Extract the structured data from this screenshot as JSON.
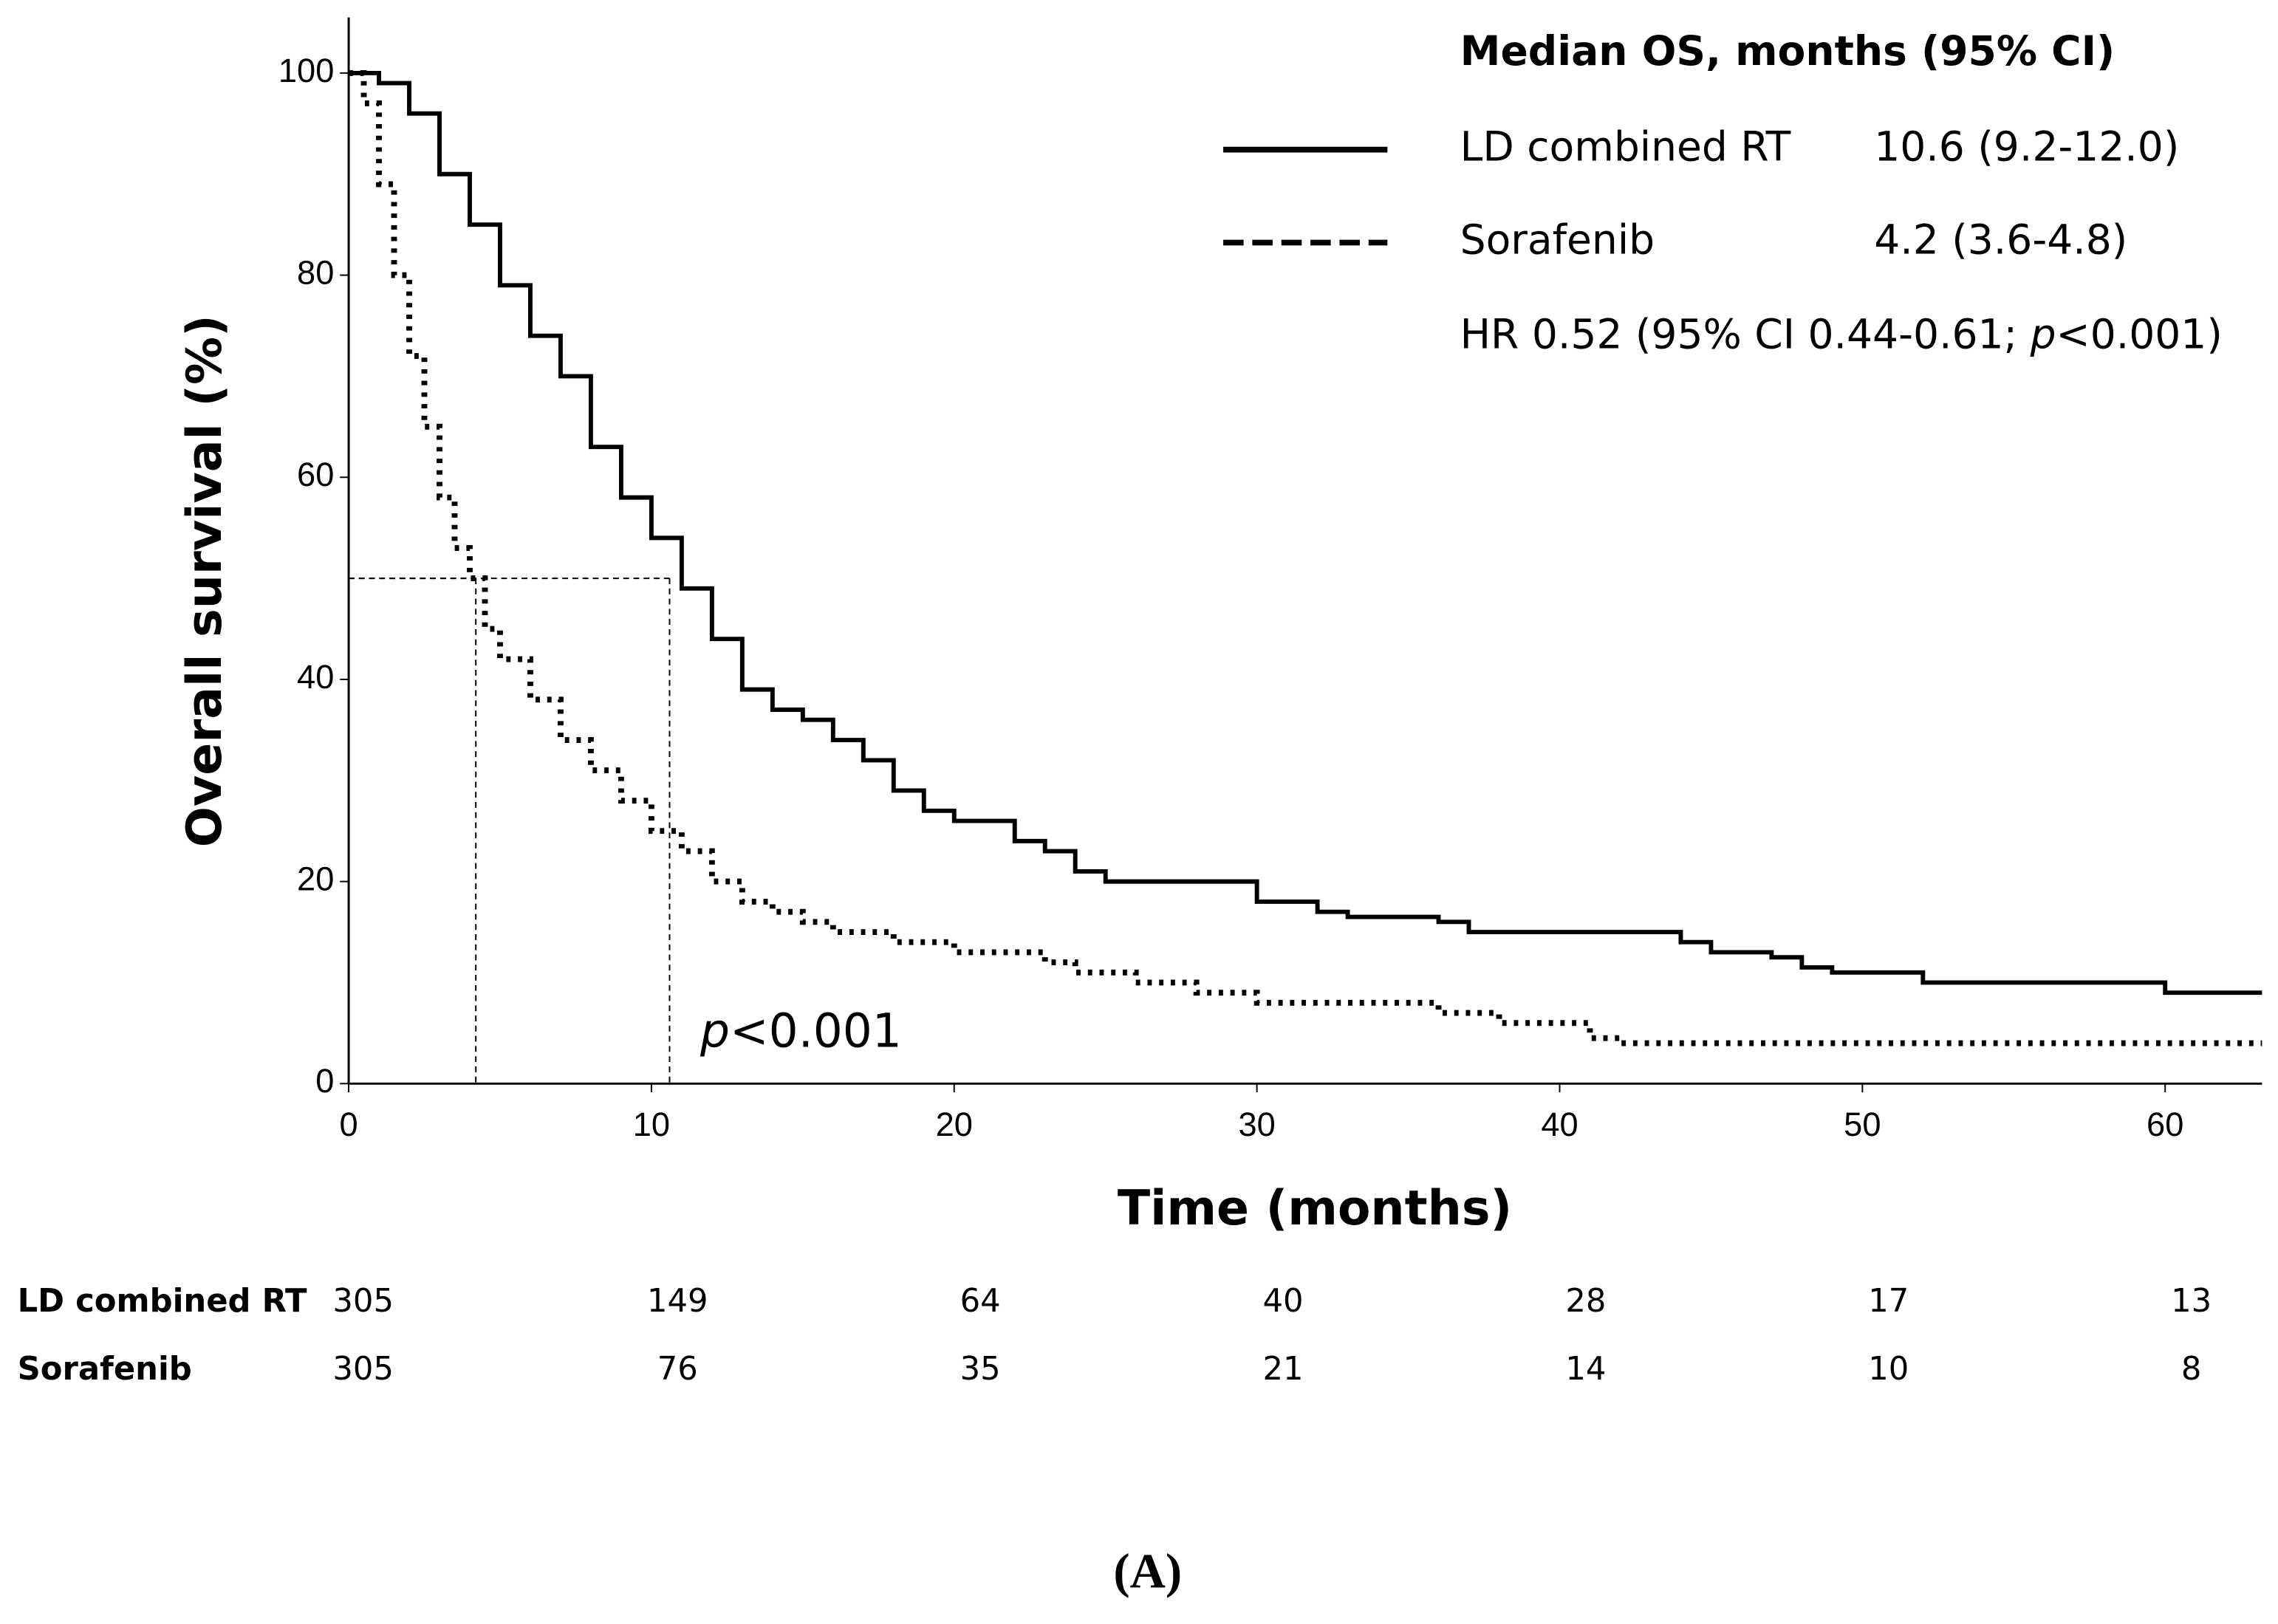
{
  "chart_data": {
    "type": "step",
    "y_label": "Overall survival (%)",
    "x_label": "Time (months)",
    "xlim": [
      0,
      63.2
    ],
    "ylim": [
      0,
      105.5
    ],
    "xticks": [
      0,
      10,
      20,
      30,
      40,
      50,
      60
    ],
    "yticks": [
      0,
      20,
      40,
      60,
      80,
      100
    ],
    "series": [
      {
        "name": "LD combined RT",
        "color": "#000000",
        "line_style": "solid",
        "median_label": "10.6 (9.2-12.0)",
        "x": [
          0,
          1,
          2,
          3,
          4,
          5,
          6,
          7,
          8,
          9,
          10,
          11,
          12,
          13,
          14,
          15,
          16,
          17,
          18,
          19,
          20,
          22,
          23,
          24,
          25,
          27,
          30,
          32,
          33,
          36,
          37,
          42,
          44,
          45,
          47,
          48,
          49,
          52,
          58,
          60,
          63.2
        ],
        "values": [
          100,
          99,
          96,
          90,
          85,
          79,
          74,
          70,
          63,
          58,
          54,
          49,
          44,
          39,
          37,
          36,
          34,
          32,
          29,
          27,
          26,
          24,
          23,
          21,
          20,
          20,
          18,
          17,
          16.5,
          16,
          15,
          15,
          14,
          13,
          12.5,
          11.5,
          11,
          10,
          10,
          9,
          9
        ]
      },
      {
        "name": "Sorafenib",
        "color": "#000000",
        "line_style": "dotted",
        "median_label": "4.2 (3.6-4.8)",
        "x": [
          0,
          0.5,
          1,
          1.5,
          2,
          2.5,
          3,
          3.5,
          4,
          4.5,
          5,
          6,
          7,
          8,
          9,
          10,
          11,
          12,
          13,
          14,
          15,
          16,
          18,
          20,
          23,
          24,
          26,
          28,
          30,
          34,
          36,
          38,
          41,
          42,
          50,
          63.2
        ],
        "values": [
          100,
          97,
          89,
          80,
          72,
          65,
          58,
          53,
          50,
          45,
          42,
          38,
          34,
          31,
          28,
          25,
          23,
          20,
          18,
          17,
          16,
          15,
          14,
          13,
          12,
          11,
          10,
          9,
          8,
          8,
          7,
          6,
          4.5,
          4,
          4,
          4
        ]
      }
    ],
    "median_y": 50,
    "median_x": [
      4.2,
      10.6
    ],
    "legend_title": "Median OS, months (95% CI)",
    "hr_text": [
      "HR 0.52 (95% CI 0.44-0.61; ",
      "p",
      "<0.001)"
    ],
    "p_annotation": [
      "p",
      "<0.001"
    ],
    "at_risk": {
      "times": [
        0,
        10,
        20,
        30,
        40,
        50,
        60
      ],
      "rows": [
        {
          "name": "LD combined RT",
          "values": [
            305,
            149,
            64,
            40,
            28,
            17,
            13
          ]
        },
        {
          "name": "Sorafenib",
          "values": [
            305,
            76,
            35,
            21,
            14,
            10,
            8
          ]
        }
      ]
    },
    "caption": "(A)"
  }
}
